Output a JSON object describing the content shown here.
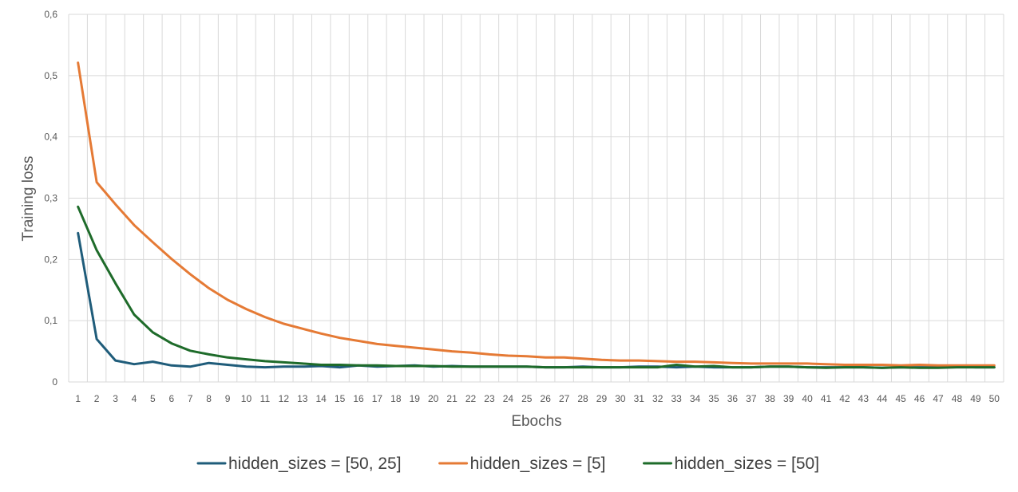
{
  "chart_data": {
    "type": "line",
    "xlabel": "Ebochs",
    "ylabel": "Training loss",
    "categories": [
      "1",
      "2",
      "3",
      "4",
      "5",
      "6",
      "7",
      "8",
      "9",
      "10",
      "11",
      "12",
      "13",
      "14",
      "15",
      "16",
      "17",
      "18",
      "19",
      "20",
      "21",
      "22",
      "23",
      "24",
      "25",
      "26",
      "27",
      "28",
      "29",
      "30",
      "31",
      "32",
      "33",
      "34",
      "35",
      "36",
      "37",
      "38",
      "39",
      "40",
      "41",
      "42",
      "43",
      "44",
      "45",
      "46",
      "47",
      "48",
      "49",
      "50"
    ],
    "ylim": [
      0,
      0.6
    ],
    "yticks": [
      {
        "value": 0,
        "label": "0"
      },
      {
        "value": 0.1,
        "label": "0,1"
      },
      {
        "value": 0.2,
        "label": "0,2"
      },
      {
        "value": 0.3,
        "label": "0,3"
      },
      {
        "value": 0.4,
        "label": "0,4"
      },
      {
        "value": 0.5,
        "label": "0,5"
      },
      {
        "value": 0.6,
        "label": "0,6"
      }
    ],
    "grid": true,
    "legend_position": "bottom",
    "series": [
      {
        "name": "hidden_sizes = [50, 25]",
        "color": "#1f5c7a",
        "values": [
          0.243,
          0.07,
          0.035,
          0.029,
          0.033,
          0.027,
          0.025,
          0.031,
          0.028,
          0.025,
          0.024,
          0.025,
          0.025,
          0.026,
          0.024,
          0.027,
          0.025,
          0.026,
          0.027,
          0.025,
          0.026,
          0.025,
          0.025,
          0.025,
          0.025,
          0.024,
          0.024,
          0.025,
          0.024,
          0.024,
          0.025,
          0.025,
          0.024,
          0.025,
          0.024,
          0.024,
          0.024,
          0.025,
          0.025,
          0.024,
          0.024,
          0.024,
          0.024,
          0.023,
          0.024,
          0.024,
          0.024,
          0.025,
          0.024,
          0.024
        ]
      },
      {
        "name": "hidden_sizes = [5]",
        "color": "#e57a35",
        "values": [
          0.521,
          0.326,
          0.29,
          0.256,
          0.228,
          0.201,
          0.176,
          0.153,
          0.134,
          0.119,
          0.106,
          0.095,
          0.087,
          0.079,
          0.072,
          0.067,
          0.062,
          0.059,
          0.056,
          0.053,
          0.05,
          0.048,
          0.045,
          0.043,
          0.042,
          0.04,
          0.04,
          0.038,
          0.036,
          0.035,
          0.035,
          0.034,
          0.033,
          0.033,
          0.032,
          0.031,
          0.03,
          0.03,
          0.03,
          0.03,
          0.029,
          0.028,
          0.028,
          0.028,
          0.027,
          0.028,
          0.027,
          0.027,
          0.027,
          0.027
        ]
      },
      {
        "name": "hidden_sizes = [50]",
        "color": "#1e6b2a",
        "values": [
          0.286,
          0.215,
          0.161,
          0.11,
          0.081,
          0.063,
          0.051,
          0.045,
          0.04,
          0.037,
          0.034,
          0.032,
          0.03,
          0.028,
          0.028,
          0.027,
          0.027,
          0.026,
          0.026,
          0.026,
          0.025,
          0.025,
          0.025,
          0.025,
          0.025,
          0.024,
          0.024,
          0.024,
          0.024,
          0.024,
          0.024,
          0.024,
          0.028,
          0.025,
          0.026,
          0.024,
          0.024,
          0.025,
          0.025,
          0.024,
          0.023,
          0.024,
          0.024,
          0.023,
          0.024,
          0.023,
          0.023,
          0.024,
          0.024,
          0.024
        ]
      }
    ]
  }
}
